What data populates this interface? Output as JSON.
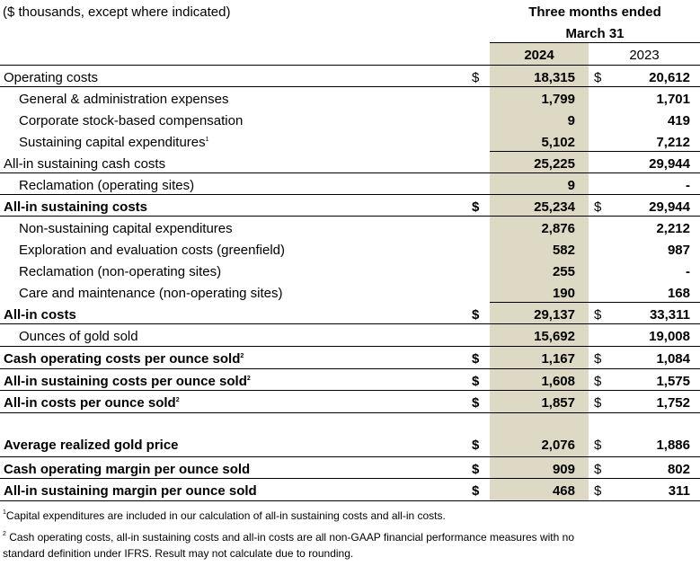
{
  "header": {
    "units_label": "($ thousands, except where indicated)",
    "period_line1": "Three months ended",
    "period_line2": "March 31",
    "col_2024": "2024",
    "col_2023": "2023"
  },
  "rows": [
    {
      "label": "Operating costs",
      "footnote": "",
      "dollar_2024": "$",
      "v2024": "18,315",
      "dollar_2023": "$",
      "v2023": "20,612"
    },
    {
      "label": "General & administration expenses",
      "footnote": "",
      "dollar_2024": "",
      "v2024": "1,799",
      "dollar_2023": "",
      "v2023": "1,701"
    },
    {
      "label": "Corporate stock-based compensation",
      "footnote": "",
      "dollar_2024": "",
      "v2024": "9",
      "dollar_2023": "",
      "v2023": "419"
    },
    {
      "label": "Sustaining capital expenditures",
      "footnote": "1",
      "dollar_2024": "",
      "v2024": "5,102",
      "dollar_2023": "",
      "v2023": "7,212"
    },
    {
      "label": "All-in sustaining cash costs",
      "footnote": "",
      "dollar_2024": "",
      "v2024": "25,225",
      "dollar_2023": "",
      "v2023": "29,944"
    },
    {
      "label": "Reclamation (operating sites)",
      "footnote": "",
      "dollar_2024": "",
      "v2024": "9",
      "dollar_2023": "",
      "v2023": "-"
    },
    {
      "label": "All-in sustaining costs",
      "footnote": "",
      "dollar_2024": "$",
      "v2024": "25,234",
      "dollar_2023": "$",
      "v2023": "29,944"
    },
    {
      "label": "Non-sustaining capital expenditures",
      "footnote": "",
      "dollar_2024": "",
      "v2024": "2,876",
      "dollar_2023": "",
      "v2023": "2,212"
    },
    {
      "label": "Exploration and evaluation costs (greenfield)",
      "footnote": "",
      "dollar_2024": "",
      "v2024": "582",
      "dollar_2023": "",
      "v2023": "987"
    },
    {
      "label": "Reclamation (non-operating sites)",
      "footnote": "",
      "dollar_2024": "",
      "v2024": "255",
      "dollar_2023": "",
      "v2023": "-"
    },
    {
      "label": "Care and maintenance (non-operating sites)",
      "footnote": "",
      "dollar_2024": "",
      "v2024": "190",
      "dollar_2023": "",
      "v2023": "168"
    },
    {
      "label": "All-in costs",
      "footnote": "",
      "dollar_2024": "$",
      "v2024": "29,137",
      "dollar_2023": "$",
      "v2023": "33,311"
    },
    {
      "label": "Ounces of gold sold",
      "footnote": "",
      "dollar_2024": "",
      "v2024": "15,692",
      "dollar_2023": "",
      "v2023": "19,008"
    },
    {
      "label": "Cash operating costs per ounce sold",
      "footnote": "2",
      "dollar_2024": "$",
      "v2024": "1,167",
      "dollar_2023": "$",
      "v2023": "1,084"
    },
    {
      "label": "All-in sustaining costs per ounce sold",
      "footnote": "2",
      "dollar_2024": "$",
      "v2024": "1,608",
      "dollar_2023": "$",
      "v2023": "1,575"
    },
    {
      "label": "All-in costs per ounce sold",
      "footnote": "2",
      "dollar_2024": "$",
      "v2024": "1,857",
      "dollar_2023": "$",
      "v2023": "1,752"
    },
    {
      "label": "Average realized gold price",
      "footnote": "",
      "dollar_2024": "$",
      "v2024": "2,076",
      "dollar_2023": "$",
      "v2023": "1,886"
    },
    {
      "label": "Cash operating margin per ounce sold",
      "footnote": "",
      "dollar_2024": "$",
      "v2024": "909",
      "dollar_2023": "$",
      "v2023": "802"
    },
    {
      "label": "All-in sustaining margin per ounce sold",
      "footnote": "",
      "dollar_2024": "$",
      "v2024": "468",
      "dollar_2023": "$",
      "v2023": "311"
    }
  ],
  "footnotes": {
    "note1_marker": "1",
    "note1_text": "Capital expenditures are included in our calculation of all-in sustaining costs and all-in costs.",
    "note2_marker": "2",
    "note2_line1": " Cash operating costs, all-in sustaining costs and all-in costs are all non-GAAP financial performance measures with no",
    "note2_line2": "standard definition under IFRS.  Result may not calculate due to rounding."
  }
}
